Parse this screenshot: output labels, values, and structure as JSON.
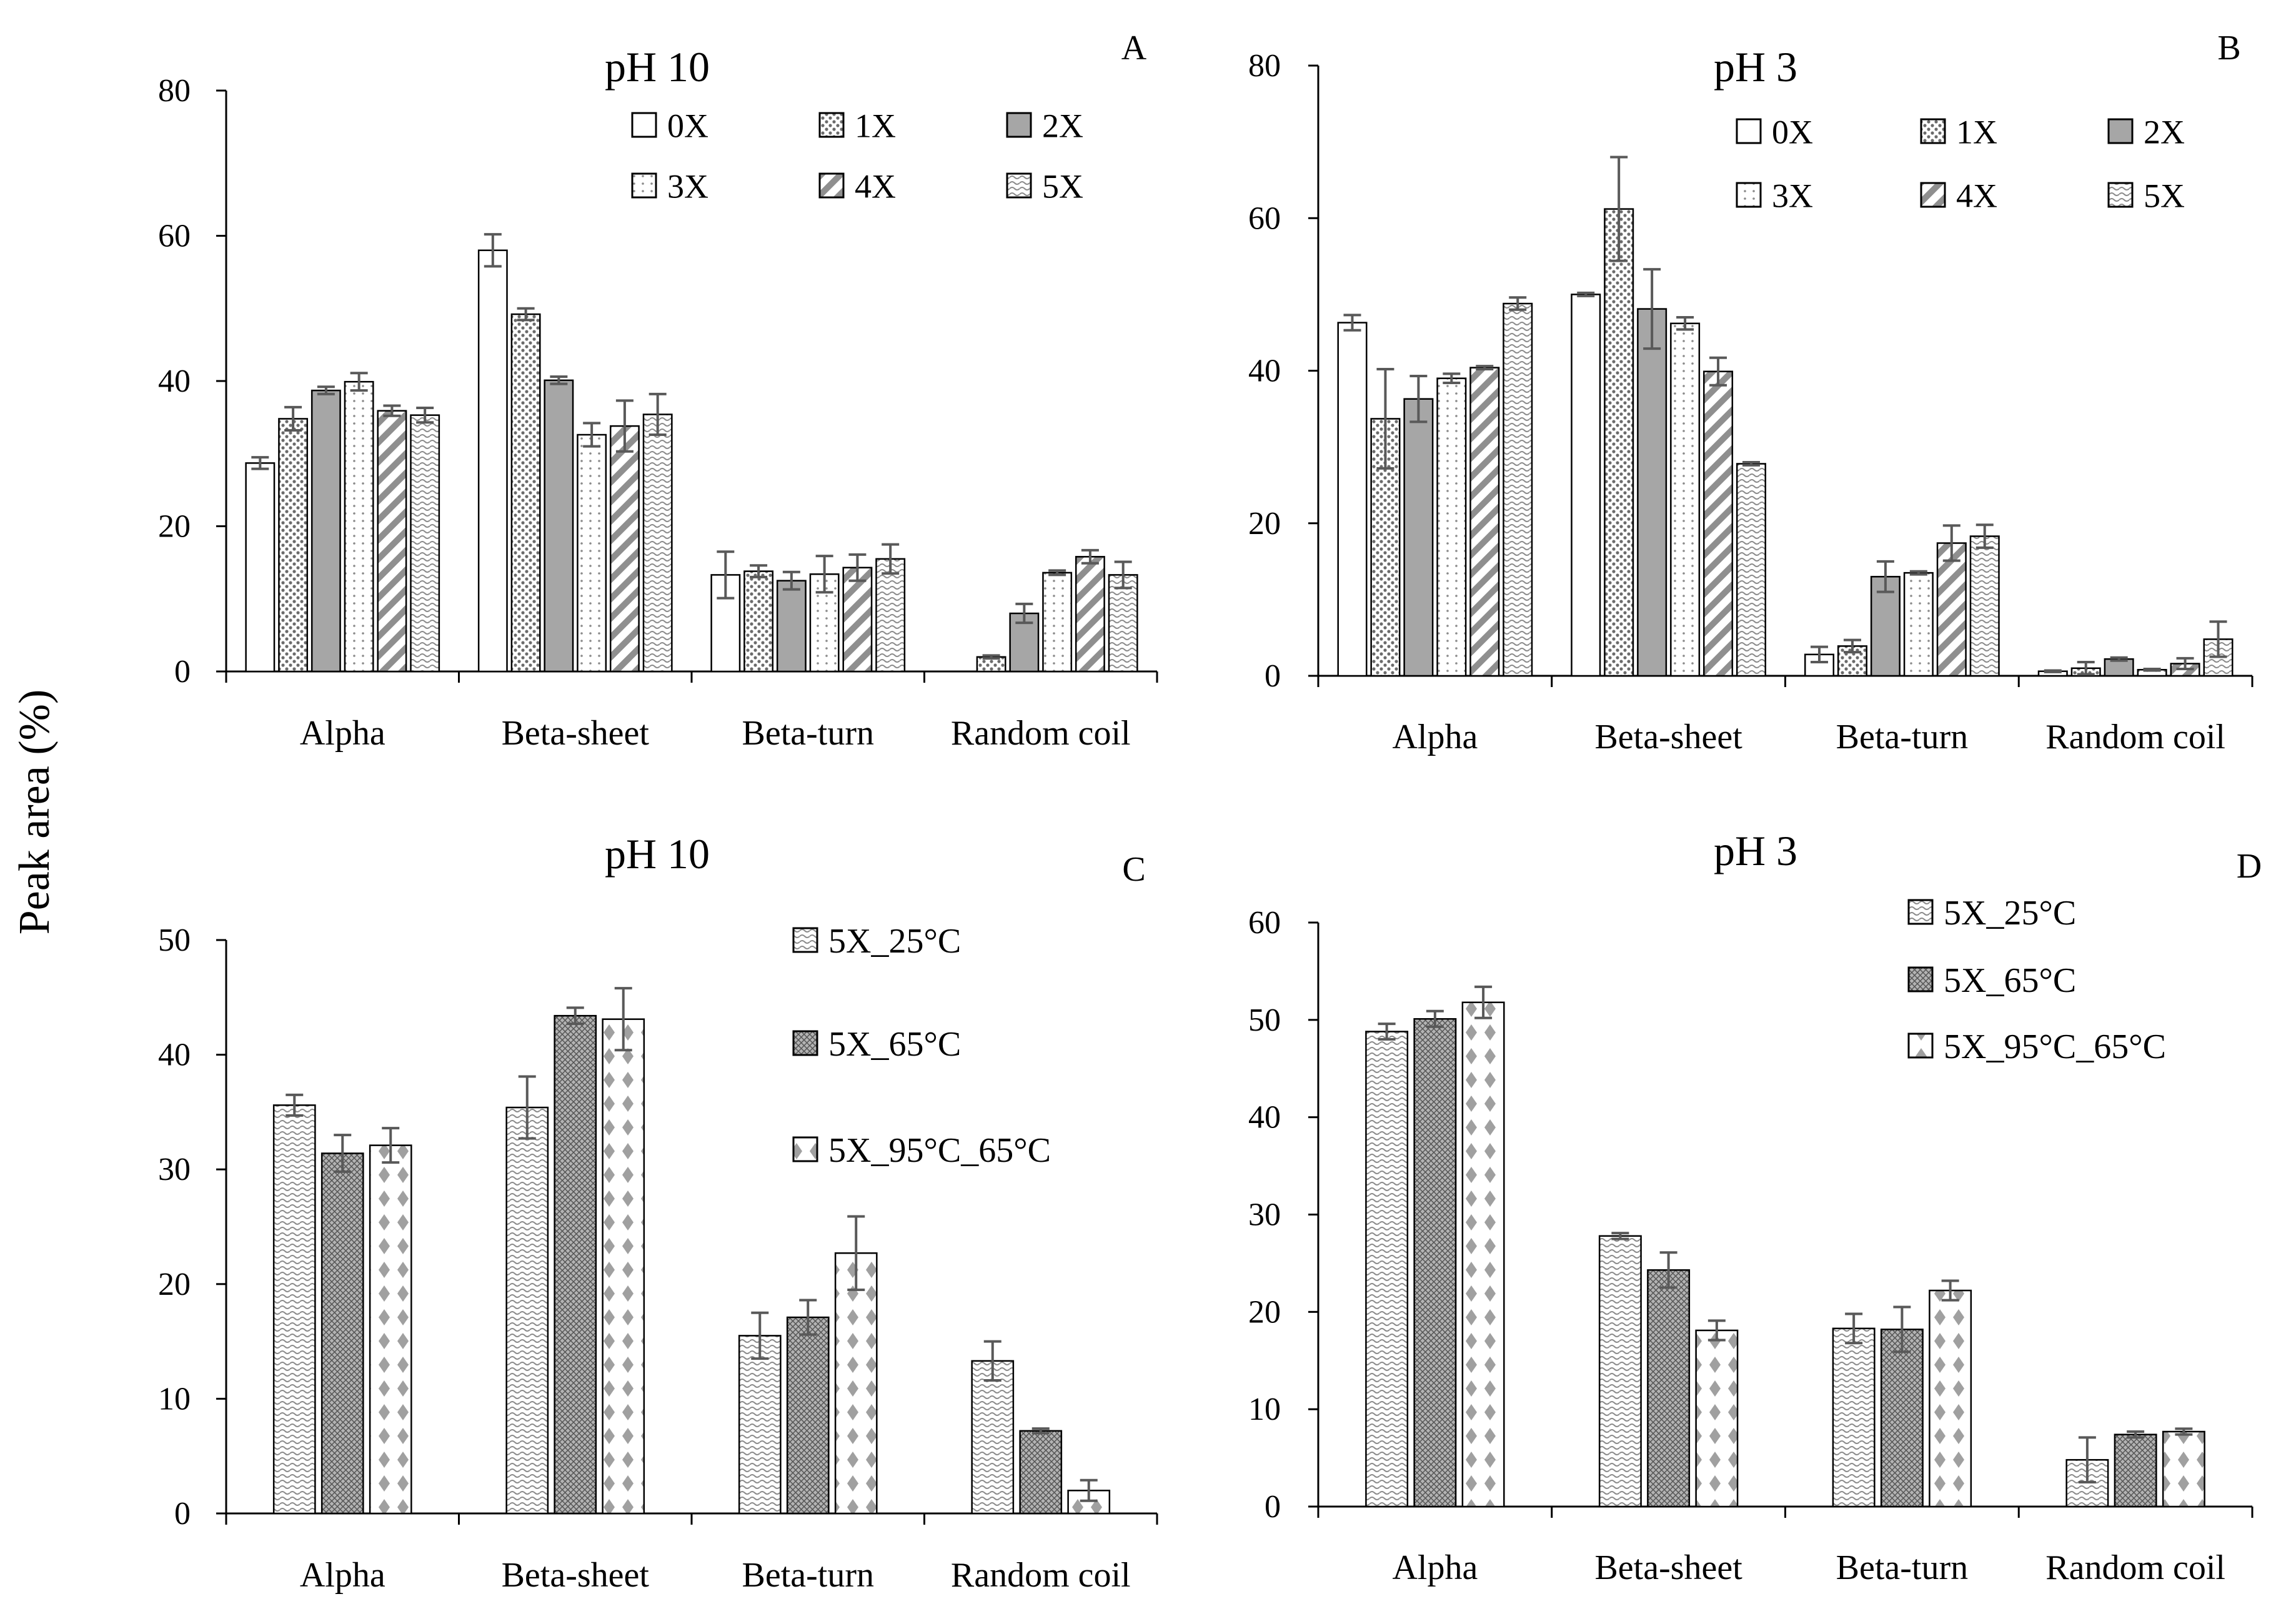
{
  "figure": {
    "y_axis_title": "Peak area (%)"
  },
  "chart_data": [
    {
      "panel": "A",
      "type": "bar",
      "title": "pH 10",
      "xlabel": "",
      "ylabel": "Peak area (%)",
      "ylim": [
        0,
        80
      ],
      "yticks": [
        0,
        20,
        40,
        60,
        80
      ],
      "legend_columns": 3,
      "categories": [
        "Alpha",
        "Beta-sheet",
        "Beta-turn",
        "Random coil"
      ],
      "series": [
        {
          "name": "0X",
          "pattern": "none",
          "values": [
            28.7,
            58.0,
            13.3,
            0
          ],
          "errors": [
            0.8,
            2.2,
            3.2,
            0
          ]
        },
        {
          "name": "1X",
          "pattern": "dots",
          "values": [
            34.8,
            49.2,
            13.8,
            2.0
          ],
          "errors": [
            1.6,
            0.8,
            0.8,
            0.2
          ]
        },
        {
          "name": "2X",
          "pattern": "gray",
          "values": [
            38.7,
            40.1,
            12.5,
            8.0
          ],
          "errors": [
            0.5,
            0.5,
            1.2,
            1.3
          ]
        },
        {
          "name": "3X",
          "pattern": "vdots",
          "values": [
            39.9,
            32.6,
            13.4,
            13.6
          ],
          "errors": [
            1.2,
            1.6,
            2.5,
            0.3
          ]
        },
        {
          "name": "4X",
          "pattern": "diag",
          "values": [
            35.9,
            33.8,
            14.3,
            15.8
          ],
          "errors": [
            0.7,
            3.5,
            1.8,
            0.9
          ]
        },
        {
          "name": "5X",
          "pattern": "wave",
          "values": [
            35.3,
            35.4,
            15.5,
            13.3
          ],
          "errors": [
            1.0,
            2.8,
            2.0,
            1.8
          ]
        }
      ]
    },
    {
      "panel": "B",
      "type": "bar",
      "title": "pH 3",
      "xlabel": "",
      "ylabel": "Peak area (%)",
      "ylim": [
        0,
        80
      ],
      "yticks": [
        0,
        20,
        40,
        60,
        80
      ],
      "legend_columns": 3,
      "categories": [
        "Alpha",
        "Beta-sheet",
        "Beta-turn",
        "Random coil"
      ],
      "series": [
        {
          "name": "0X",
          "pattern": "none",
          "values": [
            46.3,
            50.0,
            2.8,
            0.6
          ],
          "errors": [
            1.0,
            0.2,
            1.0,
            0.1
          ]
        },
        {
          "name": "1X",
          "pattern": "dots",
          "values": [
            33.7,
            61.2,
            3.9,
            1.0
          ],
          "errors": [
            6.5,
            6.8,
            0.8,
            0.8
          ]
        },
        {
          "name": "2X",
          "pattern": "gray",
          "values": [
            36.3,
            48.1,
            13.0,
            2.2
          ],
          "errors": [
            3.0,
            5.2,
            2.0,
            0.2
          ]
        },
        {
          "name": "3X",
          "pattern": "vdots",
          "values": [
            39.0,
            46.2,
            13.5,
            0.8
          ],
          "errors": [
            0.6,
            0.8,
            0.2,
            0.1
          ]
        },
        {
          "name": "4X",
          "pattern": "diag",
          "values": [
            40.4,
            39.9,
            17.4,
            1.6
          ],
          "errors": [
            0.2,
            1.8,
            2.3,
            0.7
          ]
        },
        {
          "name": "5X",
          "pattern": "wave",
          "values": [
            48.8,
            27.8,
            18.3,
            4.8
          ],
          "errors": [
            0.8,
            0.2,
            1.5,
            2.3
          ]
        }
      ]
    },
    {
      "panel": "C",
      "type": "bar",
      "title": "pH 10",
      "xlabel": "",
      "ylabel": "Peak area (%)",
      "ylim": [
        0,
        50
      ],
      "yticks": [
        0,
        10,
        20,
        30,
        40,
        50
      ],
      "legend_columns": 1,
      "categories": [
        "Alpha",
        "Beta-sheet",
        "Beta-turn",
        "Random coil"
      ],
      "series": [
        {
          "name": "5X_25°C",
          "pattern": "wave",
          "values": [
            35.6,
            35.4,
            15.5,
            13.3
          ],
          "errors": [
            0.9,
            2.7,
            2.0,
            1.7
          ]
        },
        {
          "name": "5X_65°C",
          "pattern": "grid",
          "values": [
            31.4,
            43.4,
            17.1,
            7.2
          ],
          "errors": [
            1.6,
            0.7,
            1.5,
            0.2
          ]
        },
        {
          "name": "5X_95°C_65°C",
          "pattern": "diamonds",
          "values": [
            32.1,
            43.1,
            22.7,
            2.0
          ],
          "errors": [
            1.5,
            2.7,
            3.2,
            0.9
          ]
        }
      ]
    },
    {
      "panel": "D",
      "type": "bar",
      "title": "pH 3",
      "xlabel": "",
      "ylabel": "Peak area (%)",
      "ylim": [
        0,
        60
      ],
      "yticks": [
        0,
        10,
        20,
        30,
        40,
        50,
        60
      ],
      "legend_columns": 1,
      "categories": [
        "Alpha",
        "Beta-sheet",
        "Beta-turn",
        "Random coil"
      ],
      "series": [
        {
          "name": "5X_25°C",
          "pattern": "wave",
          "values": [
            48.8,
            27.8,
            18.3,
            4.8
          ],
          "errors": [
            0.8,
            0.3,
            1.5,
            2.3
          ]
        },
        {
          "name": "5X_65°C",
          "pattern": "grid",
          "values": [
            50.1,
            24.3,
            18.2,
            7.4
          ],
          "errors": [
            0.8,
            1.8,
            2.3,
            0.3
          ]
        },
        {
          "name": "5X_95°C_65°C",
          "pattern": "diamonds",
          "values": [
            51.8,
            18.1,
            22.2,
            7.7
          ],
          "errors": [
            1.6,
            1.0,
            1.0,
            0.3
          ]
        }
      ]
    }
  ]
}
